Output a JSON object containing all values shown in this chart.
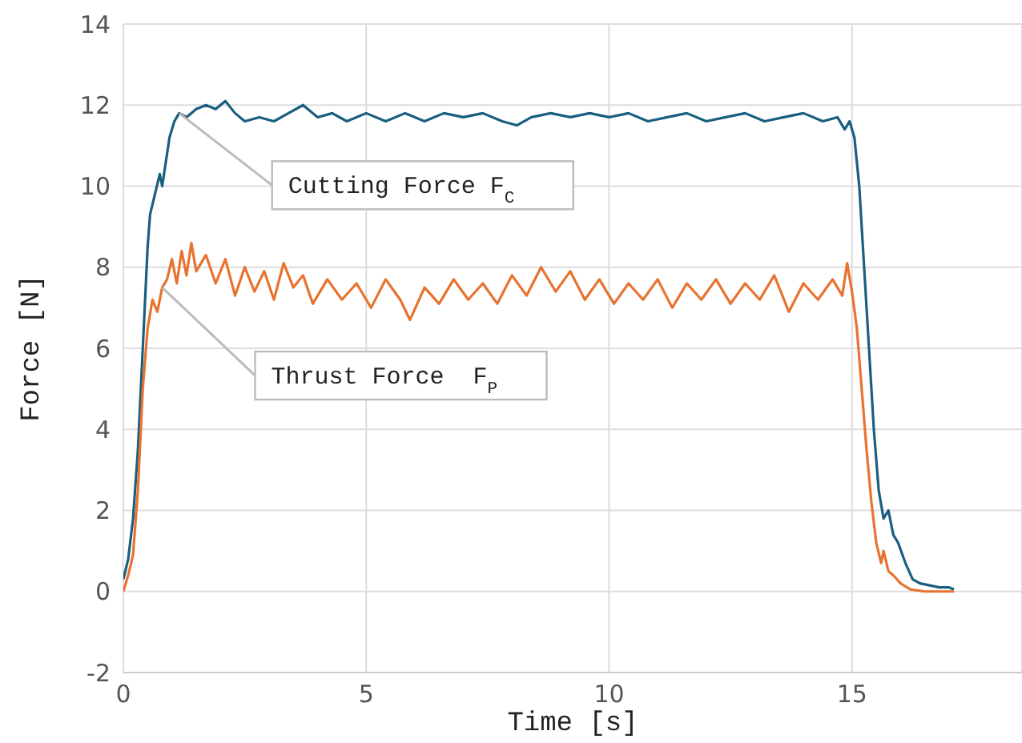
{
  "chart_data": {
    "type": "line",
    "xlabel": "Time [s]",
    "ylabel": "Force [N]",
    "xlim": [
      0,
      18.5
    ],
    "xticks": [
      0,
      5,
      10,
      15
    ],
    "ylim": [
      -2,
      14
    ],
    "yticks": [
      -2,
      0,
      2,
      4,
      6,
      8,
      10,
      12,
      14
    ],
    "grid": true,
    "series": [
      {
        "name": "Cutting Force F$_{C}$",
        "color": "#1a5e80",
        "x": [
          0,
          0.1,
          0.2,
          0.3,
          0.4,
          0.5,
          0.55,
          0.65,
          0.75,
          0.8,
          0.85,
          0.95,
          1.05,
          1.15,
          1.3,
          1.5,
          1.7,
          1.9,
          2.1,
          2.3,
          2.5,
          2.8,
          3.1,
          3.4,
          3.7,
          4.0,
          4.3,
          4.6,
          5.0,
          5.4,
          5.8,
          6.2,
          6.6,
          7.0,
          7.4,
          7.8,
          8.1,
          8.4,
          8.8,
          9.2,
          9.6,
          10.0,
          10.4,
          10.8,
          11.2,
          11.6,
          12.0,
          12.4,
          12.8,
          13.2,
          13.6,
          14.0,
          14.4,
          14.7,
          14.85,
          14.95,
          15.05,
          15.15,
          15.25,
          15.35,
          15.45,
          15.55,
          15.65,
          15.75,
          15.85,
          15.95,
          16.1,
          16.25,
          16.4,
          16.6,
          16.8,
          17.0,
          17.1
        ],
        "values": [
          0.3,
          0.8,
          1.8,
          3.5,
          6.0,
          8.5,
          9.3,
          9.8,
          10.3,
          10.0,
          10.4,
          11.2,
          11.6,
          11.8,
          11.7,
          11.9,
          12.0,
          11.9,
          12.1,
          11.8,
          11.6,
          11.7,
          11.6,
          11.8,
          12.0,
          11.7,
          11.8,
          11.6,
          11.8,
          11.6,
          11.8,
          11.6,
          11.8,
          11.7,
          11.8,
          11.6,
          11.5,
          11.7,
          11.8,
          11.7,
          11.8,
          11.7,
          11.8,
          11.6,
          11.7,
          11.8,
          11.6,
          11.7,
          11.8,
          11.6,
          11.7,
          11.8,
          11.6,
          11.7,
          11.4,
          11.6,
          11.2,
          10.0,
          8.0,
          6.0,
          4.0,
          2.5,
          1.8,
          2.0,
          1.4,
          1.2,
          0.7,
          0.3,
          0.2,
          0.15,
          0.1,
          0.1,
          0.05
        ]
      },
      {
        "name": "Thrust Force  F$_{P}$",
        "color": "#e87330",
        "x": [
          0,
          0.1,
          0.2,
          0.3,
          0.4,
          0.5,
          0.6,
          0.7,
          0.8,
          0.9,
          1.0,
          1.1,
          1.2,
          1.3,
          1.4,
          1.5,
          1.7,
          1.9,
          2.1,
          2.3,
          2.5,
          2.7,
          2.9,
          3.1,
          3.3,
          3.5,
          3.7,
          3.9,
          4.2,
          4.5,
          4.8,
          5.1,
          5.4,
          5.7,
          5.9,
          6.2,
          6.5,
          6.8,
          7.1,
          7.4,
          7.7,
          8.0,
          8.3,
          8.6,
          8.9,
          9.2,
          9.5,
          9.8,
          10.1,
          10.4,
          10.7,
          11.0,
          11.3,
          11.6,
          11.9,
          12.2,
          12.5,
          12.8,
          13.1,
          13.4,
          13.7,
          14.0,
          14.3,
          14.6,
          14.8,
          14.9,
          15.0,
          15.1,
          15.2,
          15.3,
          15.4,
          15.5,
          15.6,
          15.65,
          15.75,
          15.85,
          16.0,
          16.2,
          16.5,
          16.8,
          17.1
        ],
        "values": [
          0,
          0.4,
          0.9,
          2.5,
          5.0,
          6.5,
          7.2,
          6.9,
          7.5,
          7.7,
          8.2,
          7.6,
          8.4,
          7.8,
          8.6,
          7.9,
          8.3,
          7.6,
          8.2,
          7.3,
          8.0,
          7.4,
          7.9,
          7.2,
          8.1,
          7.5,
          7.8,
          7.1,
          7.7,
          7.2,
          7.6,
          7.0,
          7.7,
          7.2,
          6.7,
          7.5,
          7.1,
          7.7,
          7.2,
          7.6,
          7.1,
          7.8,
          7.3,
          8.0,
          7.4,
          7.9,
          7.2,
          7.7,
          7.1,
          7.6,
          7.2,
          7.7,
          7.0,
          7.6,
          7.2,
          7.7,
          7.1,
          7.6,
          7.2,
          7.8,
          6.9,
          7.6,
          7.2,
          7.7,
          7.3,
          8.1,
          7.4,
          6.5,
          5.0,
          3.5,
          2.2,
          1.2,
          0.7,
          1.0,
          0.5,
          0.4,
          0.2,
          0.05,
          0,
          0,
          0
        ]
      }
    ]
  }
}
